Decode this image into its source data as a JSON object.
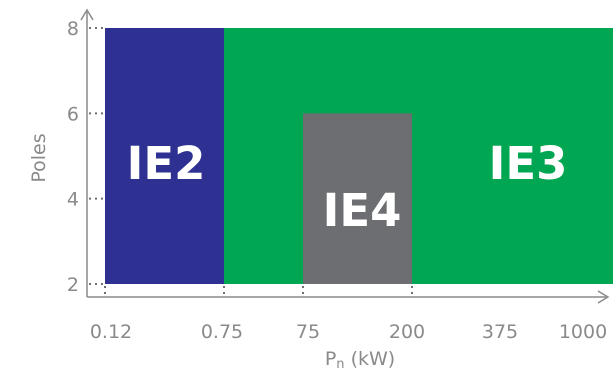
{
  "chart_data": {
    "type": "area",
    "xlabel": "Pn (kW)",
    "xlabel_main": "P",
    "xlabel_sub": "n",
    "xlabel_unit": " (kW)",
    "ylabel": "Poles",
    "x_ticks": [
      "0.12",
      "0.75",
      "75",
      "200",
      "375",
      "1000"
    ],
    "y_ticks": [
      2,
      4,
      6,
      8
    ],
    "ylim": [
      2,
      8
    ],
    "grid": false,
    "regions": [
      {
        "label": "IE2",
        "x_from": "0.12",
        "x_to": "0.75",
        "poles_from": 2,
        "poles_to": 8,
        "color": "#2e3192"
      },
      {
        "label": "IE3",
        "x_from": "0.75",
        "x_to": "1000",
        "poles_from": 2,
        "poles_to": 8,
        "color": "#00a651"
      },
      {
        "label": "IE4",
        "x_from": "75",
        "x_to": "200",
        "poles_from": 2,
        "poles_to": 6,
        "color": "#6d6e71"
      }
    ]
  }
}
